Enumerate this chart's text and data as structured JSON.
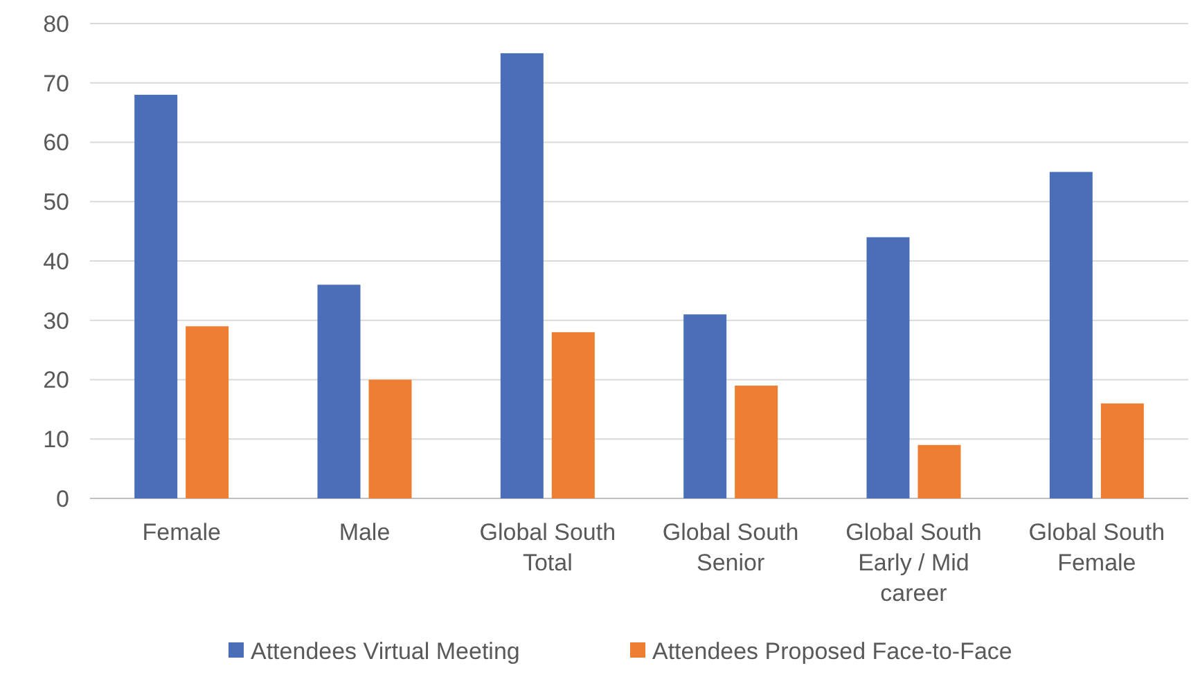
{
  "chart_data": {
    "type": "bar",
    "categories": [
      "Female",
      "Male",
      "Global South Total",
      "Global South Senior",
      "Global South Early / Mid career",
      "Global South Female"
    ],
    "series": [
      {
        "name": "Attendees Virtual Meeting",
        "color": "#4a6fb8",
        "values": [
          68,
          36,
          75,
          31,
          44,
          55
        ]
      },
      {
        "name": "Attendees Proposed Face-to-Face",
        "color": "#ed7d31",
        "values": [
          29,
          20,
          28,
          19,
          9,
          16
        ]
      }
    ],
    "ylim": [
      0,
      80
    ],
    "yticks": [
      0,
      10,
      20,
      30,
      40,
      50,
      60,
      70,
      80
    ],
    "grid": "y",
    "legend": "bottom"
  }
}
